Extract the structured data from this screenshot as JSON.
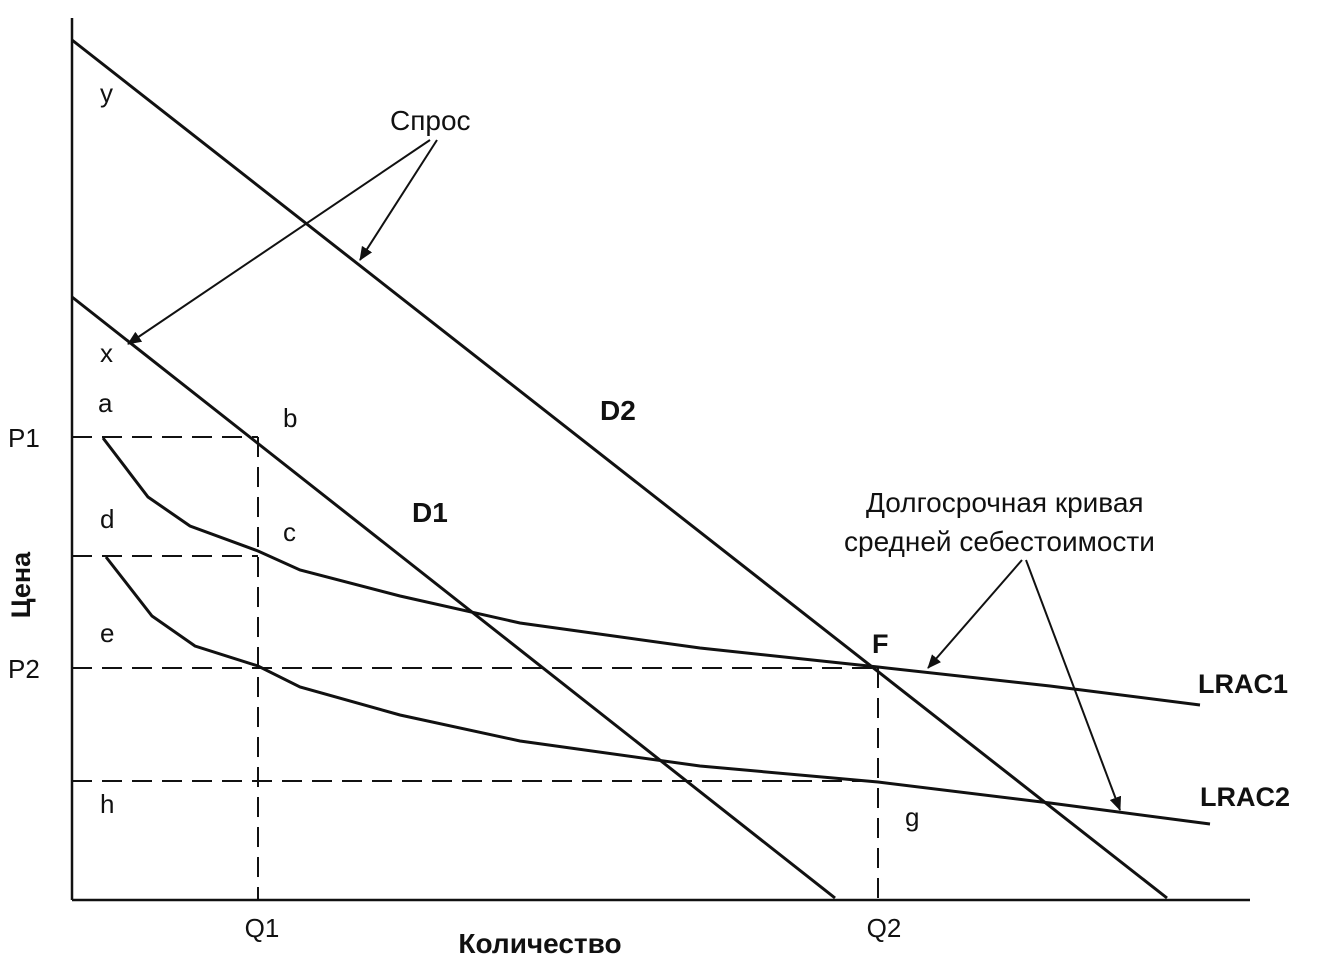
{
  "axes": {
    "y_label": "Цена",
    "x_label": "Количество"
  },
  "price_ticks": [
    "P1",
    "P2"
  ],
  "quantity_ticks": [
    "Q1",
    "Q2"
  ],
  "curves": {
    "d1": "D1",
    "d2": "D2",
    "lrac1": "LRAC1",
    "lrac2": "LRAC2"
  },
  "annotations": {
    "demand": "Спрос",
    "lrac_line1": "Долгосрочная кривая",
    "lrac_line2": "средней себестоимости"
  },
  "points": {
    "y": "y",
    "x": "x",
    "a": "a",
    "b": "b",
    "c": "c",
    "d": "d",
    "e": "e",
    "h": "h",
    "g": "g",
    "f": "F"
  },
  "colors": {
    "ink": "#111111",
    "background": "#ffffff"
  }
}
